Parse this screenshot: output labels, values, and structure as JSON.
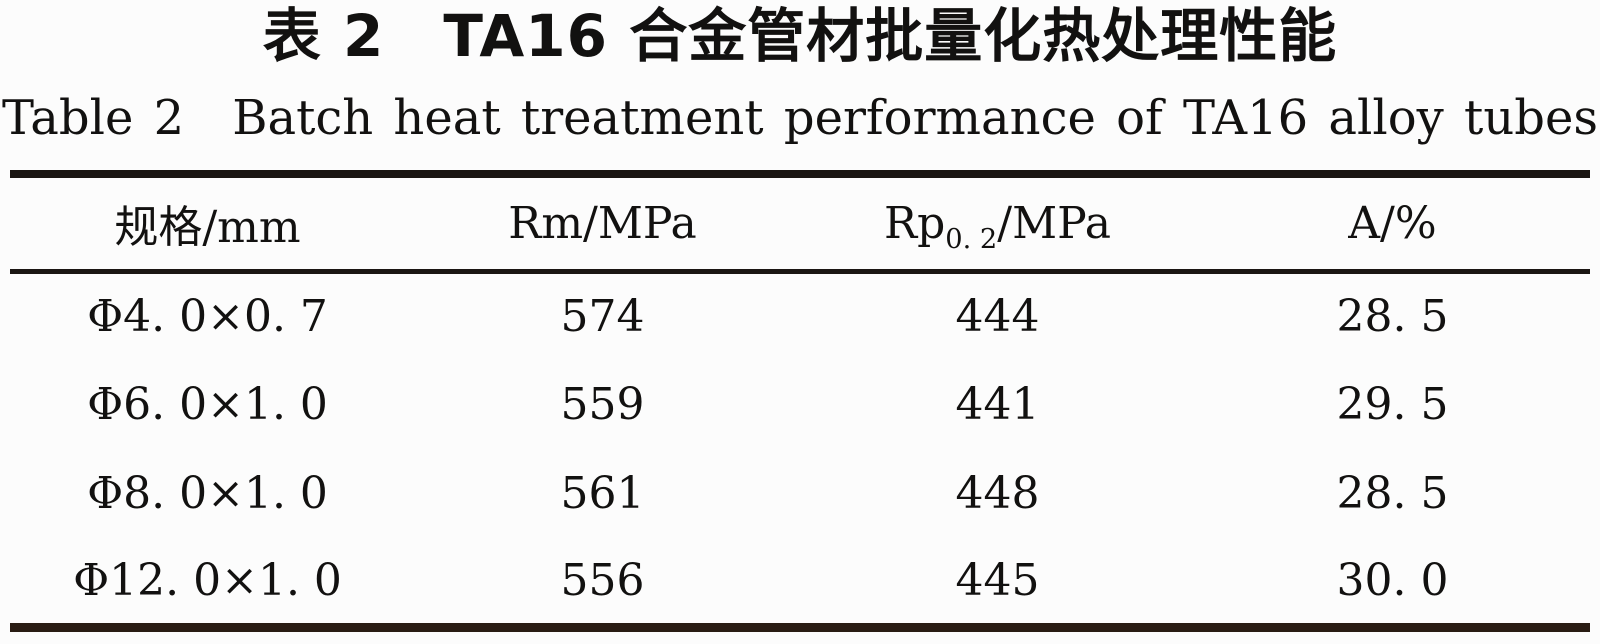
{
  "page": {
    "title_zh": "表 2　TA16 合金管材批量化热处理性能",
    "title_en": "Table 2　Batch heat treatment performance of TA16 alloy tubes"
  },
  "table": {
    "headers": {
      "spec": "规格/mm",
      "rm": "Rm/MPa",
      "rp_prefix": "Rp",
      "rp_sub": "0. 2",
      "rp_suffix": "/MPa",
      "elongation": "A/%"
    },
    "rows": [
      {
        "spec": "Φ4. 0×0. 7",
        "rm": "574",
        "rp02": "444",
        "a": "28. 5"
      },
      {
        "spec": "Φ6. 0×1. 0",
        "rm": "559",
        "rp02": "441",
        "a": "29. 5"
      },
      {
        "spec": "Φ8. 0×1. 0",
        "rm": "561",
        "rp02": "448",
        "a": "28. 5"
      },
      {
        "spec": "Φ12. 0×1. 0",
        "rm": "556",
        "rp02": "445",
        "a": "30. 0"
      }
    ]
  }
}
